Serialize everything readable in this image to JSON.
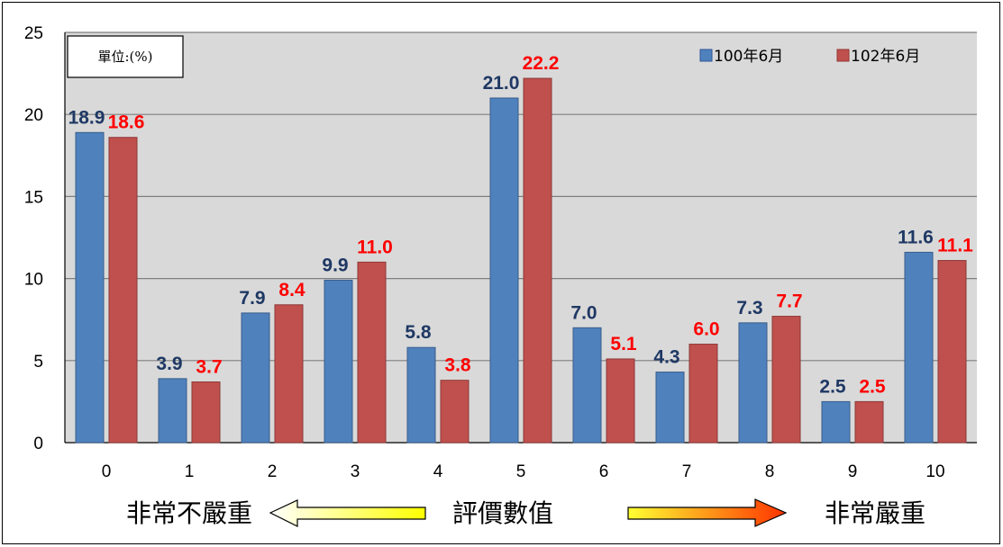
{
  "chart_data": {
    "type": "bar",
    "categories": [
      "0",
      "1",
      "2",
      "3",
      "4",
      "5",
      "6",
      "7",
      "8",
      "9",
      "10"
    ],
    "series": [
      {
        "name": "100年6月",
        "color": "#4F81BD",
        "label_color": "#1F3864",
        "values": [
          18.9,
          3.9,
          7.9,
          9.9,
          5.8,
          21.0,
          7.0,
          4.3,
          7.3,
          2.5,
          11.6
        ]
      },
      {
        "name": "102年6月",
        "color": "#C0504D",
        "label_color": "#FF0000",
        "values": [
          18.6,
          3.7,
          8.4,
          11.0,
          3.8,
          22.2,
          5.1,
          6.0,
          7.7,
          2.5,
          11.1
        ]
      }
    ],
    "ylim": [
      0,
      25
    ],
    "yticks": [
      "0",
      "5",
      "10",
      "15",
      "20",
      "25"
    ],
    "grid": true,
    "legend_position": "top-right",
    "unit_label": "單位:(%)",
    "plot_background": "#D9D9D9"
  },
  "footer": {
    "left_text": "非常不嚴重",
    "center_text": "評價數值",
    "right_text": "非常嚴重"
  }
}
